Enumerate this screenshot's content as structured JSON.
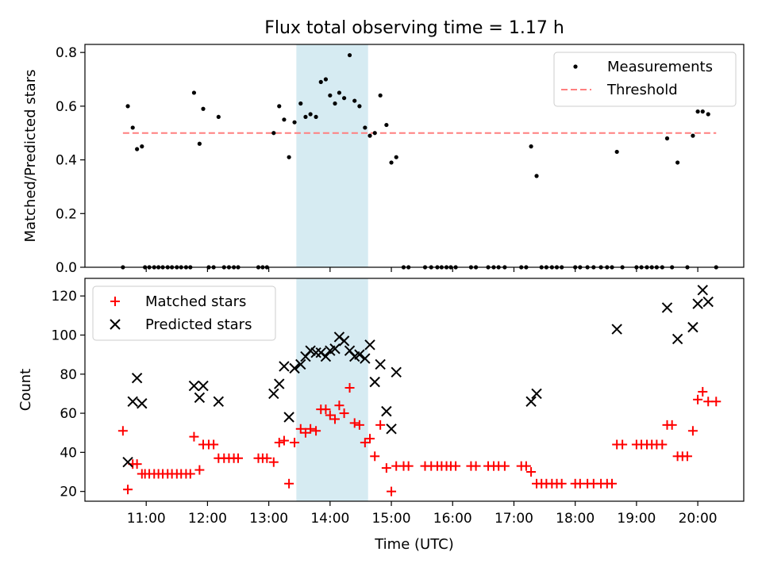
{
  "title": "Flux total observing time = 1.17 h",
  "highlight_hours": [
    13.45,
    14.62
  ],
  "chart_data": [
    {
      "type": "scatter",
      "ylabel": "Matched/Predicted stars",
      "ylim": [
        0,
        0.83
      ],
      "yticks": [
        "0.0",
        "0.2",
        "0.4",
        "0.6",
        "0.8"
      ],
      "ytick_values": [
        0,
        0.2,
        0.4,
        0.6,
        0.8
      ],
      "legend_position": "top-right",
      "legend": [
        {
          "label": "Measurements",
          "marker": "dot",
          "color": "#000000"
        },
        {
          "label": "Threshold",
          "marker": "dash",
          "color": "#ff7f7f"
        }
      ],
      "threshold": {
        "value": 0.5,
        "x_range": [
          10.62,
          20.3
        ]
      },
      "series": [
        {
          "name": "Measurements",
          "points": [
            [
              10.62,
              0.0
            ],
            [
              10.7,
              0.6
            ],
            [
              10.78,
              0.52
            ],
            [
              10.85,
              0.44
            ],
            [
              10.93,
              0.45
            ],
            [
              10.98,
              0.0
            ],
            [
              11.05,
              0.0
            ],
            [
              11.13,
              0.0
            ],
            [
              11.2,
              0.0
            ],
            [
              11.27,
              0.0
            ],
            [
              11.35,
              0.0
            ],
            [
              11.42,
              0.0
            ],
            [
              11.5,
              0.0
            ],
            [
              11.57,
              0.0
            ],
            [
              11.65,
              0.0
            ],
            [
              11.72,
              0.0
            ],
            [
              11.78,
              0.65
            ],
            [
              11.87,
              0.46
            ],
            [
              11.93,
              0.59
            ],
            [
              12.02,
              0.0
            ],
            [
              12.1,
              0.0
            ],
            [
              12.18,
              0.56
            ],
            [
              12.27,
              0.0
            ],
            [
              12.35,
              0.0
            ],
            [
              12.43,
              0.0
            ],
            [
              12.5,
              0.0
            ],
            [
              12.83,
              0.0
            ],
            [
              12.9,
              0.0
            ],
            [
              12.97,
              0.0
            ],
            [
              13.08,
              0.5
            ],
            [
              13.17,
              0.6
            ],
            [
              13.25,
              0.55
            ],
            [
              13.33,
              0.41
            ],
            [
              13.42,
              0.54
            ],
            [
              13.52,
              0.61
            ],
            [
              13.6,
              0.56
            ],
            [
              13.68,
              0.57
            ],
            [
              13.77,
              0.56
            ],
            [
              13.85,
              0.69
            ],
            [
              13.93,
              0.7
            ],
            [
              14.0,
              0.64
            ],
            [
              14.08,
              0.61
            ],
            [
              14.15,
              0.65
            ],
            [
              14.23,
              0.63
            ],
            [
              14.32,
              0.79
            ],
            [
              14.4,
              0.62
            ],
            [
              14.48,
              0.6
            ],
            [
              14.57,
              0.52
            ],
            [
              14.65,
              0.49
            ],
            [
              14.73,
              0.5
            ],
            [
              14.82,
              0.64
            ],
            [
              14.92,
              0.53
            ],
            [
              15.0,
              0.39
            ],
            [
              15.08,
              0.41
            ],
            [
              15.2,
              0.0
            ],
            [
              15.28,
              0.0
            ],
            [
              15.55,
              0.0
            ],
            [
              15.65,
              0.0
            ],
            [
              15.75,
              0.0
            ],
            [
              15.82,
              0.0
            ],
            [
              15.9,
              0.0
            ],
            [
              15.97,
              0.0
            ],
            [
              16.05,
              0.0
            ],
            [
              16.3,
              0.0
            ],
            [
              16.38,
              0.0
            ],
            [
              16.58,
              0.0
            ],
            [
              16.67,
              0.0
            ],
            [
              16.75,
              0.0
            ],
            [
              16.85,
              0.0
            ],
            [
              17.12,
              0.0
            ],
            [
              17.2,
              0.0
            ],
            [
              17.28,
              0.45
            ],
            [
              17.37,
              0.34
            ],
            [
              17.45,
              0.0
            ],
            [
              17.53,
              0.0
            ],
            [
              17.62,
              0.0
            ],
            [
              17.7,
              0.0
            ],
            [
              17.78,
              0.0
            ],
            [
              18.0,
              0.0
            ],
            [
              18.08,
              0.0
            ],
            [
              18.2,
              0.0
            ],
            [
              18.3,
              0.0
            ],
            [
              18.42,
              0.0
            ],
            [
              18.52,
              0.0
            ],
            [
              18.6,
              0.0
            ],
            [
              18.68,
              0.43
            ],
            [
              18.77,
              0.0
            ],
            [
              19.0,
              0.0
            ],
            [
              19.08,
              0.0
            ],
            [
              19.17,
              0.0
            ],
            [
              19.25,
              0.0
            ],
            [
              19.33,
              0.0
            ],
            [
              19.42,
              0.0
            ],
            [
              19.5,
              0.48
            ],
            [
              19.58,
              0.0
            ],
            [
              19.67,
              0.39
            ],
            [
              19.83,
              0.0
            ],
            [
              19.92,
              0.49
            ],
            [
              20.0,
              0.58
            ],
            [
              20.08,
              0.58
            ],
            [
              20.17,
              0.57
            ],
            [
              20.3,
              0.0
            ]
          ]
        }
      ]
    },
    {
      "type": "scatter",
      "xlabel": "Time (UTC)",
      "ylabel": "Count",
      "ylim": [
        15,
        129
      ],
      "yticks": [
        "20",
        "40",
        "60",
        "80",
        "100",
        "120"
      ],
      "ytick_values": [
        20,
        40,
        60,
        80,
        100,
        120
      ],
      "xlim": [
        10.0,
        20.75
      ],
      "xticks": [
        "11:00",
        "12:00",
        "13:00",
        "14:00",
        "15:00",
        "16:00",
        "17:00",
        "18:00",
        "19:00",
        "20:00"
      ],
      "xtick_values": [
        11,
        12,
        13,
        14,
        15,
        16,
        17,
        18,
        19,
        20
      ],
      "legend_position": "top-left",
      "legend": [
        {
          "label": "Matched stars",
          "marker": "plus",
          "color": "#ff0000"
        },
        {
          "label": "Predicted stars",
          "marker": "x",
          "color": "#000000"
        }
      ],
      "series": [
        {
          "name": "Matched stars",
          "color": "#ff0000",
          "marker": "plus",
          "points": [
            [
              10.62,
              51
            ],
            [
              10.7,
              21
            ],
            [
              10.78,
              34
            ],
            [
              10.85,
              34
            ],
            [
              10.93,
              29
            ],
            [
              10.98,
              29
            ],
            [
              11.05,
              29
            ],
            [
              11.13,
              29
            ],
            [
              11.2,
              29
            ],
            [
              11.27,
              29
            ],
            [
              11.35,
              29
            ],
            [
              11.42,
              29
            ],
            [
              11.5,
              29
            ],
            [
              11.57,
              29
            ],
            [
              11.65,
              29
            ],
            [
              11.72,
              29
            ],
            [
              11.78,
              48
            ],
            [
              11.87,
              31
            ],
            [
              11.93,
              44
            ],
            [
              12.02,
              44
            ],
            [
              12.1,
              44
            ],
            [
              12.18,
              37
            ],
            [
              12.27,
              37
            ],
            [
              12.35,
              37
            ],
            [
              12.43,
              37
            ],
            [
              12.5,
              37
            ],
            [
              12.83,
              37
            ],
            [
              12.9,
              37
            ],
            [
              12.97,
              37
            ],
            [
              13.08,
              35
            ],
            [
              13.17,
              45
            ],
            [
              13.25,
              46
            ],
            [
              13.33,
              24
            ],
            [
              13.42,
              45
            ],
            [
              13.52,
              52
            ],
            [
              13.6,
              50
            ],
            [
              13.68,
              52
            ],
            [
              13.77,
              51
            ],
            [
              13.85,
              62
            ],
            [
              13.93,
              62
            ],
            [
              14.0,
              59
            ],
            [
              14.08,
              57
            ],
            [
              14.15,
              64
            ],
            [
              14.23,
              60
            ],
            [
              14.32,
              73
            ],
            [
              14.4,
              55
            ],
            [
              14.48,
              54
            ],
            [
              14.57,
              45
            ],
            [
              14.65,
              47
            ],
            [
              14.73,
              38
            ],
            [
              14.82,
              54
            ],
            [
              14.92,
              32
            ],
            [
              15.0,
              20
            ],
            [
              15.08,
              33
            ],
            [
              15.2,
              33
            ],
            [
              15.28,
              33
            ],
            [
              15.55,
              33
            ],
            [
              15.65,
              33
            ],
            [
              15.75,
              33
            ],
            [
              15.82,
              33
            ],
            [
              15.9,
              33
            ],
            [
              15.97,
              33
            ],
            [
              16.05,
              33
            ],
            [
              16.3,
              33
            ],
            [
              16.38,
              33
            ],
            [
              16.58,
              33
            ],
            [
              16.67,
              33
            ],
            [
              16.75,
              33
            ],
            [
              16.85,
              33
            ],
            [
              17.12,
              33
            ],
            [
              17.2,
              33
            ],
            [
              17.28,
              30
            ],
            [
              17.37,
              24
            ],
            [
              17.45,
              24
            ],
            [
              17.53,
              24
            ],
            [
              17.62,
              24
            ],
            [
              17.7,
              24
            ],
            [
              17.78,
              24
            ],
            [
              18.0,
              24
            ],
            [
              18.08,
              24
            ],
            [
              18.2,
              24
            ],
            [
              18.3,
              24
            ],
            [
              18.42,
              24
            ],
            [
              18.52,
              24
            ],
            [
              18.6,
              24
            ],
            [
              18.68,
              44
            ],
            [
              18.77,
              44
            ],
            [
              19.0,
              44
            ],
            [
              19.08,
              44
            ],
            [
              19.17,
              44
            ],
            [
              19.25,
              44
            ],
            [
              19.33,
              44
            ],
            [
              19.42,
              44
            ],
            [
              19.5,
              54
            ],
            [
              19.58,
              54
            ],
            [
              19.67,
              38
            ],
            [
              19.75,
              38
            ],
            [
              19.83,
              38
            ],
            [
              19.92,
              51
            ],
            [
              20.0,
              67
            ],
            [
              20.08,
              71
            ],
            [
              20.17,
              66
            ],
            [
              20.3,
              66
            ]
          ]
        },
        {
          "name": "Predicted stars",
          "color": "#000000",
          "marker": "x",
          "points": [
            [
              10.7,
              35
            ],
            [
              10.78,
              66
            ],
            [
              10.85,
              78
            ],
            [
              10.93,
              65
            ],
            [
              11.78,
              74
            ],
            [
              11.87,
              68
            ],
            [
              11.93,
              74
            ],
            [
              12.18,
              66
            ],
            [
              13.08,
              70
            ],
            [
              13.17,
              75
            ],
            [
              13.25,
              84
            ],
            [
              13.33,
              58
            ],
            [
              13.42,
              83
            ],
            [
              13.52,
              85
            ],
            [
              13.6,
              89
            ],
            [
              13.68,
              92
            ],
            [
              13.77,
              91
            ],
            [
              13.85,
              91
            ],
            [
              13.93,
              89
            ],
            [
              14.0,
              92
            ],
            [
              14.08,
              93
            ],
            [
              14.15,
              99
            ],
            [
              14.23,
              97
            ],
            [
              14.32,
              92
            ],
            [
              14.4,
              89
            ],
            [
              14.48,
              90
            ],
            [
              14.57,
              88
            ],
            [
              14.65,
              95
            ],
            [
              14.73,
              76
            ],
            [
              14.82,
              85
            ],
            [
              14.92,
              61
            ],
            [
              15.0,
              52
            ],
            [
              15.08,
              81
            ],
            [
              17.28,
              66
            ],
            [
              17.37,
              70
            ],
            [
              18.68,
              103
            ],
            [
              19.5,
              114
            ],
            [
              19.67,
              98
            ],
            [
              19.92,
              104
            ],
            [
              20.0,
              116
            ],
            [
              20.08,
              123
            ],
            [
              20.17,
              117
            ]
          ]
        }
      ]
    }
  ]
}
